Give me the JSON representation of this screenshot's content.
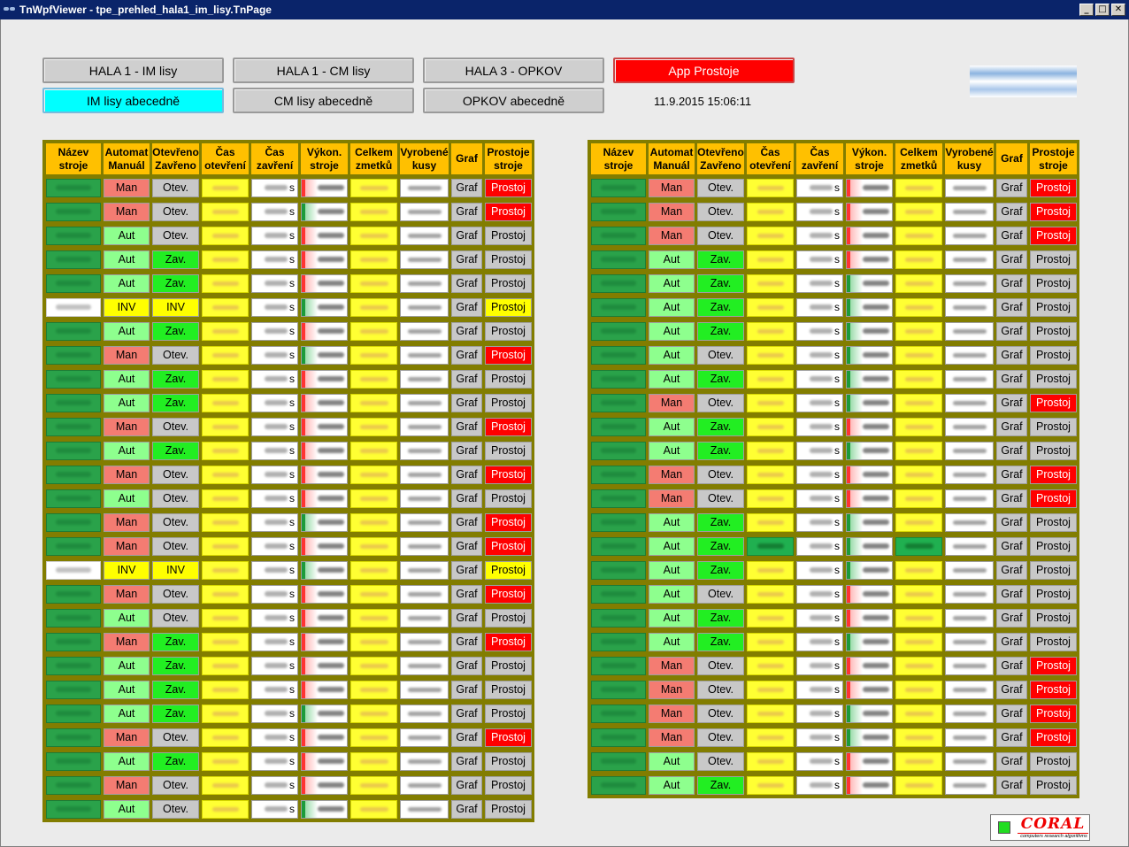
{
  "window": {
    "title": "TnWpfViewer - tpe_prehled_hala1_im_lisy.TnPage",
    "buttons": [
      "_",
      "□",
      "✕"
    ]
  },
  "nav": {
    "hala1_im": "HALA 1 - IM lisy",
    "hala1_cm": "HALA 1 - CM lisy",
    "hala3_opkov": "HALA 3 - OPKOV",
    "app_prostoje": "App Prostoje",
    "im_abecedne": "IM lisy abecedně",
    "cm_abecedne": "CM lisy abecedně",
    "opkov_abecedne": "OPKOV abecedně"
  },
  "datetime": "11.9.2015 15:06:11",
  "colors": {
    "header": "#ffc000",
    "grid_bg": "#827d00",
    "active_tab": "#00ffff",
    "alarm": "#ff0000"
  },
  "headers": [
    {
      "l1": "Název",
      "l2": "stroje"
    },
    {
      "l1": "Automat",
      "l2": "Manuál"
    },
    {
      "l1": "Otevřeno",
      "l2": "Zavřeno"
    },
    {
      "l1": "Čas",
      "l2": "otevření"
    },
    {
      "l1": "Čas",
      "l2": "zavření"
    },
    {
      "l1": "Výkon.",
      "l2": "stroje"
    },
    {
      "l1": "Celkem",
      "l2": "zmetků"
    },
    {
      "l1": "Vyrobené",
      "l2": "kusy"
    },
    {
      "l1": "Graf",
      "l2": ""
    },
    {
      "l1": "Prostoje",
      "l2": "stroje"
    }
  ],
  "labels": {
    "graf": "Graf",
    "prostoj": "Prostoj",
    "unit": "s",
    "man": "Man",
    "aut": "Aut",
    "inv": "INV",
    "otev": "Otev.",
    "zav": "Zav."
  },
  "left_rows": [
    {
      "m": "man",
      "d": "otev",
      "v": "r",
      "p": "red"
    },
    {
      "m": "man",
      "d": "otev",
      "v": "g",
      "p": "red"
    },
    {
      "m": "aut",
      "d": "otev",
      "v": "r",
      "p": "grey"
    },
    {
      "m": "aut",
      "d": "zav",
      "v": "r",
      "p": "grey"
    },
    {
      "m": "aut",
      "d": "zav",
      "v": "r",
      "p": "grey"
    },
    {
      "m": "inv",
      "d": "inv",
      "v": "g",
      "p": "yel",
      "white": true
    },
    {
      "m": "aut",
      "d": "zav",
      "v": "r",
      "p": "grey"
    },
    {
      "m": "man",
      "d": "otev",
      "v": "g",
      "p": "red"
    },
    {
      "m": "aut",
      "d": "zav",
      "v": "r",
      "p": "grey"
    },
    {
      "m": "aut",
      "d": "zav",
      "v": "r",
      "p": "grey"
    },
    {
      "m": "man",
      "d": "otev",
      "v": "r",
      "p": "red"
    },
    {
      "m": "aut",
      "d": "zav",
      "v": "r",
      "p": "grey"
    },
    {
      "m": "man",
      "d": "otev",
      "v": "r",
      "p": "red"
    },
    {
      "m": "aut",
      "d": "otev",
      "v": "r",
      "p": "grey"
    },
    {
      "m": "man",
      "d": "otev",
      "v": "g",
      "p": "red"
    },
    {
      "m": "man",
      "d": "otev",
      "v": "r",
      "p": "red"
    },
    {
      "m": "inv",
      "d": "inv",
      "v": "g",
      "p": "yel",
      "white": true
    },
    {
      "m": "man",
      "d": "otev",
      "v": "r",
      "p": "red"
    },
    {
      "m": "aut",
      "d": "otev",
      "v": "r",
      "p": "grey"
    },
    {
      "m": "man",
      "d": "zav",
      "v": "r",
      "p": "red"
    },
    {
      "m": "aut",
      "d": "zav",
      "v": "r",
      "p": "grey"
    },
    {
      "m": "aut",
      "d": "zav",
      "v": "r",
      "p": "grey"
    },
    {
      "m": "aut",
      "d": "zav",
      "v": "g",
      "p": "grey"
    },
    {
      "m": "man",
      "d": "otev",
      "v": "r",
      "p": "red"
    },
    {
      "m": "aut",
      "d": "zav",
      "v": "r",
      "p": "grey"
    },
    {
      "m": "man",
      "d": "otev",
      "v": "r",
      "p": "grey"
    },
    {
      "m": "aut",
      "d": "otev",
      "v": "g",
      "p": "grey"
    }
  ],
  "right_rows": [
    {
      "m": "man",
      "d": "otev",
      "v": "r",
      "p": "red"
    },
    {
      "m": "man",
      "d": "otev",
      "v": "r",
      "p": "red"
    },
    {
      "m": "man",
      "d": "otev",
      "v": "r",
      "p": "red"
    },
    {
      "m": "aut",
      "d": "zav",
      "v": "r",
      "p": "grey"
    },
    {
      "m": "aut",
      "d": "zav",
      "v": "g",
      "p": "grey"
    },
    {
      "m": "aut",
      "d": "zav",
      "v": "g",
      "p": "grey"
    },
    {
      "m": "aut",
      "d": "zav",
      "v": "g",
      "p": "grey"
    },
    {
      "m": "aut",
      "d": "otev",
      "v": "g",
      "p": "grey"
    },
    {
      "m": "aut",
      "d": "zav",
      "v": "g",
      "p": "grey"
    },
    {
      "m": "man",
      "d": "otev",
      "v": "g",
      "p": "red"
    },
    {
      "m": "aut",
      "d": "zav",
      "v": "r",
      "p": "grey"
    },
    {
      "m": "aut",
      "d": "zav",
      "v": "g",
      "p": "grey"
    },
    {
      "m": "man",
      "d": "otev",
      "v": "r",
      "p": "red"
    },
    {
      "m": "man",
      "d": "otev",
      "v": "r",
      "p": "red"
    },
    {
      "m": "aut",
      "d": "zav",
      "v": "g",
      "p": "grey"
    },
    {
      "m": "aut",
      "d": "zav",
      "v": "g",
      "p": "grey",
      "green": true
    },
    {
      "m": "aut",
      "d": "zav",
      "v": "g",
      "p": "grey"
    },
    {
      "m": "aut",
      "d": "otev",
      "v": "r",
      "p": "grey"
    },
    {
      "m": "aut",
      "d": "zav",
      "v": "r",
      "p": "grey"
    },
    {
      "m": "aut",
      "d": "zav",
      "v": "g",
      "p": "grey"
    },
    {
      "m": "man",
      "d": "otev",
      "v": "r",
      "p": "red"
    },
    {
      "m": "man",
      "d": "otev",
      "v": "r",
      "p": "red"
    },
    {
      "m": "man",
      "d": "otev",
      "v": "g",
      "p": "red"
    },
    {
      "m": "man",
      "d": "otev",
      "v": "g",
      "p": "red"
    },
    {
      "m": "aut",
      "d": "otev",
      "v": "r",
      "p": "grey"
    },
    {
      "m": "aut",
      "d": "zav",
      "v": "r",
      "p": "grey"
    }
  ],
  "logo": {
    "brand": "CORAL",
    "tagline": "computers research algorithms"
  }
}
